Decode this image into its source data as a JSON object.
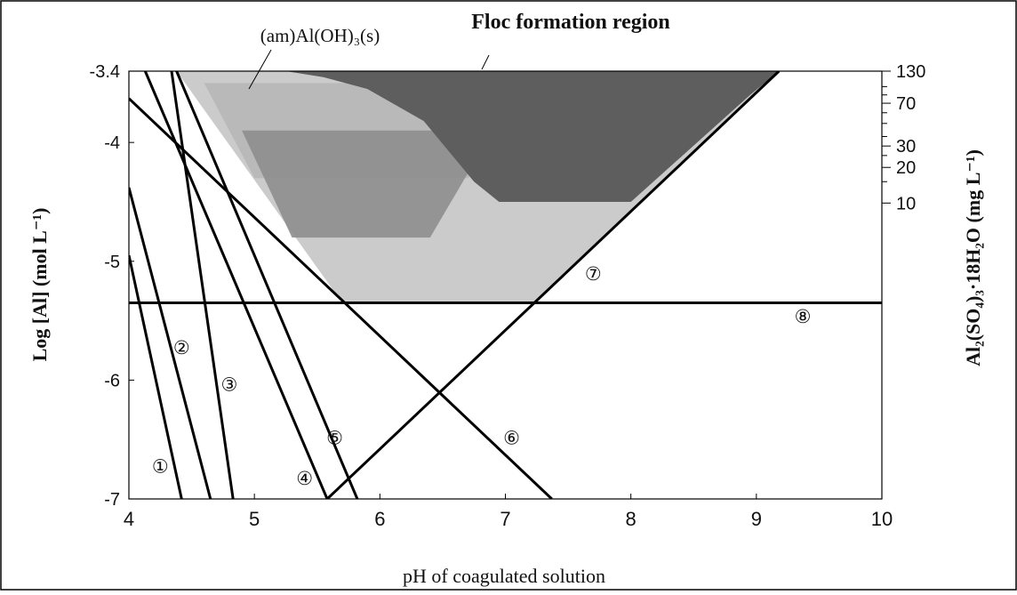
{
  "chart_data": {
    "type": "line",
    "xlabel": "pH of coagulated solution",
    "ylabel": "Log [Al] (mol L⁻¹)",
    "y2label": "Al₂(SO₄)₃·18H₂O (mg L⁻¹)",
    "xlim": [
      4,
      10
    ],
    "ylim": [
      -7,
      -3.4
    ],
    "x_ticks": [
      4,
      5,
      6,
      7,
      8,
      9,
      10
    ],
    "y_ticks": [
      -3.4,
      -4,
      -5,
      -6,
      -7
    ],
    "y_tick_labels": [
      "-3.4",
      "-4",
      "-5",
      "-6",
      "-7"
    ],
    "y2_ticks": [
      {
        "label": "130",
        "log_al": -3.4
      },
      {
        "label": "70",
        "log_al": -3.67
      },
      {
        "label": "30",
        "log_al": -4.03
      },
      {
        "label": "20",
        "log_al": -4.21
      },
      {
        "label": "10",
        "log_al": -4.51
      }
    ],
    "y2_minor_ticks": [
      -3.53,
      -3.6,
      -3.75,
      -3.84,
      -3.95,
      -4.11,
      -4.33
    ],
    "grid": false,
    "series": [
      {
        "marker": "①",
        "x": [
          4.0,
          4.42
        ],
        "y": [
          -4.95,
          -7.0
        ],
        "marker_at": [
          4.25,
          -6.72
        ]
      },
      {
        "marker": "②",
        "x": [
          4.0,
          4.65
        ],
        "y": [
          -4.38,
          -7.0
        ],
        "marker_at": [
          4.42,
          -5.72
        ]
      },
      {
        "marker": "③",
        "x": [
          4.34,
          4.83
        ],
        "y": [
          -3.4,
          -7.0
        ],
        "marker_at": [
          4.8,
          -6.03
        ]
      },
      {
        "marker": "④",
        "x": [
          4.13,
          5.58
        ],
        "y": [
          -3.4,
          -7.0
        ],
        "marker_at": [
          5.4,
          -6.82
        ]
      },
      {
        "marker": "⑤",
        "x": [
          4.38,
          5.82
        ],
        "y": [
          -3.4,
          -7.0
        ],
        "marker_at": [
          5.64,
          -6.48
        ]
      },
      {
        "marker": "⑥",
        "x": [
          4.0,
          7.37
        ],
        "y": [
          -3.63,
          -7.0
        ],
        "marker_at": [
          7.05,
          -6.48
        ]
      },
      {
        "marker": "⑦",
        "x": [
          5.58,
          9.18
        ],
        "y": [
          -7.0,
          -3.4
        ],
        "marker_at": [
          7.7,
          -5.1
        ]
      },
      {
        "marker": "⑧",
        "x": [
          4.0,
          10.0
        ],
        "y": [
          -5.35,
          -5.35
        ],
        "marker_at": [
          9.37,
          -5.46
        ]
      }
    ],
    "regions": [
      {
        "label": "(am)Al(OH)₃(s)",
        "label_at": [
          5.09,
          -3.6
        ],
        "polygon": [
          [
            4.38,
            -3.4
          ],
          [
            9.18,
            -3.4
          ],
          [
            7.22,
            -5.35
          ],
          [
            5.7,
            -5.35
          ]
        ],
        "inner_bands": [
          {
            "shade": "#b7b7b7",
            "polygon": [
              [
                4.6,
                -3.5
              ],
              [
                7.6,
                -3.5
              ],
              [
                6.7,
                -4.3
              ],
              [
                5.0,
                -4.3
              ]
            ]
          },
          {
            "shade": "#8e8e8e",
            "polygon": [
              [
                4.9,
                -3.9
              ],
              [
                6.9,
                -3.9
              ],
              [
                6.4,
                -4.8
              ],
              [
                5.3,
                -4.8
              ]
            ]
          }
        ]
      },
      {
        "label": "Floc formation region",
        "label_at": [
          5.95,
          -3.2
        ],
        "polygon": [
          [
            5.25,
            -3.4
          ],
          [
            9.18,
            -3.4
          ],
          [
            8.95,
            -3.6
          ],
          [
            8.0,
            -4.5
          ],
          [
            6.95,
            -4.5
          ],
          [
            6.75,
            -4.33
          ],
          [
            6.35,
            -3.82
          ],
          [
            5.9,
            -3.55
          ],
          [
            5.55,
            -3.45
          ]
        ]
      }
    ],
    "leaders": [
      {
        "from": [
          5.09,
          -3.6
        ],
        "to": [
          4.95,
          -3.55
        ]
      },
      {
        "from": [
          5.93,
          -3.25
        ],
        "to": [
          5.93,
          -3.37
        ]
      }
    ]
  }
}
